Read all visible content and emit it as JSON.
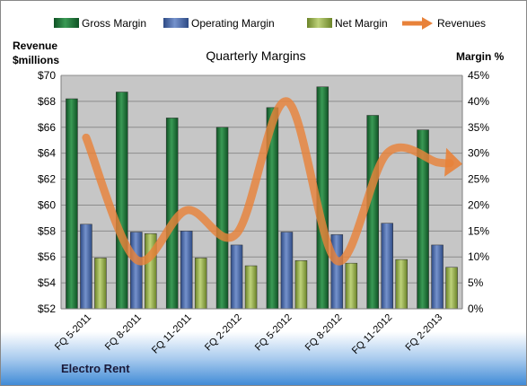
{
  "company": "Electro Rent",
  "legend": {
    "gross": "Gross Margin",
    "operating": "Operating Margin",
    "net": "Net Margin",
    "revenues": "Revenues"
  },
  "axis_labels": {
    "left_line1": "Revenue",
    "left_line2": "$millions",
    "right": "Margin %"
  },
  "colors": {
    "gross": "#1e7a3a",
    "operating": "#4a6cae",
    "net": "#97b04a",
    "revenues": "#e8823a",
    "plot_bg": "#c6c6c6",
    "footer": "#3f8ad6"
  },
  "chart_data": {
    "type": "bar",
    "title": "Quarterly Margins",
    "categories": [
      "FQ 5-2011",
      "FQ 8-2011",
      "FQ 11-2011",
      "FQ 2-2012",
      "FQ 5-2012",
      "FQ 8-2012",
      "FQ 11-2012",
      "FQ 2-2013"
    ],
    "series": [
      {
        "name": "Gross Margin",
        "axis": "right",
        "values": [
          40.5,
          41.8,
          36.8,
          35.0,
          38.8,
          42.8,
          37.3,
          34.5
        ]
      },
      {
        "name": "Operating Margin",
        "axis": "right",
        "values": [
          16.3,
          14.8,
          15.0,
          12.3,
          14.8,
          14.3,
          16.5,
          12.3
        ]
      },
      {
        "name": "Net Margin",
        "axis": "right",
        "values": [
          9.8,
          14.5,
          9.8,
          8.3,
          9.3,
          8.8,
          9.5,
          8.0
        ]
      },
      {
        "name": "Revenues",
        "axis": "left",
        "type": "line",
        "values": [
          65.2,
          55.8,
          59.6,
          57.8,
          68.0,
          55.7,
          64.0,
          63.3
        ]
      }
    ],
    "left_axis": {
      "ylim": [
        52,
        70
      ],
      "ticks": [
        "$52",
        "$54",
        "$56",
        "$58",
        "$60",
        "$62",
        "$64",
        "$66",
        "$68",
        "$70"
      ]
    },
    "right_axis": {
      "ylim": [
        0,
        45
      ],
      "ticks": [
        "0%",
        "5%",
        "10%",
        "15%",
        "20%",
        "25%",
        "30%",
        "35%",
        "40%",
        "45%"
      ]
    },
    "grid": true,
    "legend_position": "top"
  }
}
